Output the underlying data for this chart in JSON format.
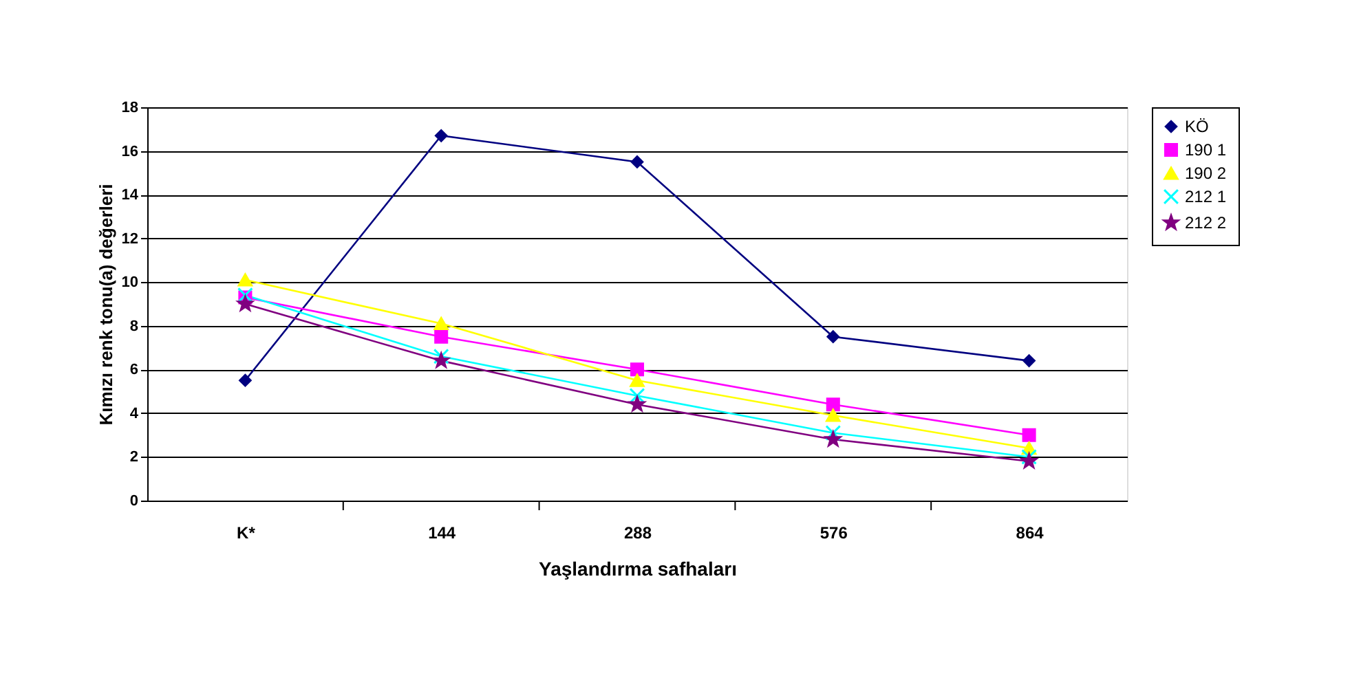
{
  "chart_data": {
    "type": "line",
    "xlabel": "Yaşlandırma safhaları",
    "ylabel": "Kımızı renk tonu(a) değerleri",
    "categories": [
      "K*",
      "144",
      "288",
      "576",
      "864"
    ],
    "series": [
      {
        "name": "KÖ",
        "color": "#000080",
        "marker": "diamond",
        "values": [
          5.5,
          16.7,
          15.5,
          7.5,
          6.4
        ]
      },
      {
        "name": "190 1",
        "color": "#ff00ff",
        "marker": "square",
        "values": [
          9.3,
          7.5,
          6.0,
          4.4,
          3.0
        ]
      },
      {
        "name": "190 2",
        "color": "#ffff00",
        "marker": "triangle",
        "values": [
          10.1,
          8.1,
          5.5,
          3.9,
          2.4
        ]
      },
      {
        "name": "212 1",
        "color": "#00ffff",
        "marker": "cross",
        "values": [
          9.4,
          6.6,
          4.8,
          3.1,
          2.0
        ]
      },
      {
        "name": "212 2",
        "color": "#800080",
        "marker": "star",
        "values": [
          9.0,
          6.4,
          4.4,
          2.8,
          1.8
        ]
      }
    ],
    "ylim": [
      0,
      18
    ],
    "yticks": [
      0,
      2,
      4,
      6,
      8,
      10,
      12,
      14,
      16,
      18
    ],
    "grid": "y",
    "legend": "right"
  }
}
